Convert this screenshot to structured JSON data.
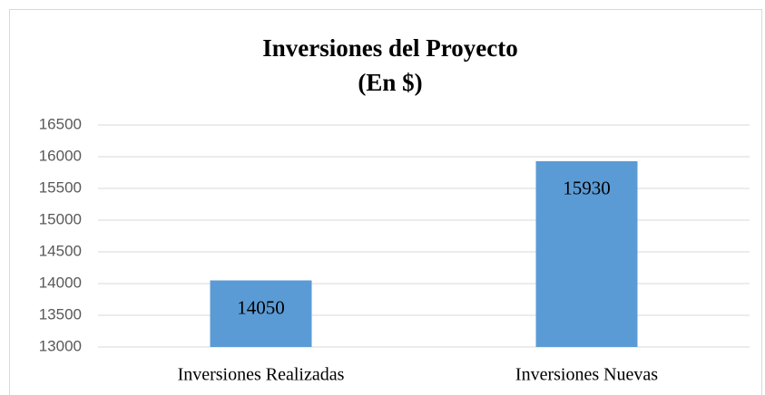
{
  "chart_data": {
    "type": "bar",
    "title": "Inversiones del Proyecto",
    "subtitle": "(En $)",
    "categories": [
      "Inversiones Realizadas",
      "Inversiones Nuevas"
    ],
    "values": [
      14050,
      15930
    ],
    "color": "#5b9bd5",
    "ylim": [
      13000,
      16500
    ],
    "yticks": [
      13000,
      13500,
      14000,
      14500,
      15000,
      15500,
      16000,
      16500
    ],
    "grid": true
  }
}
